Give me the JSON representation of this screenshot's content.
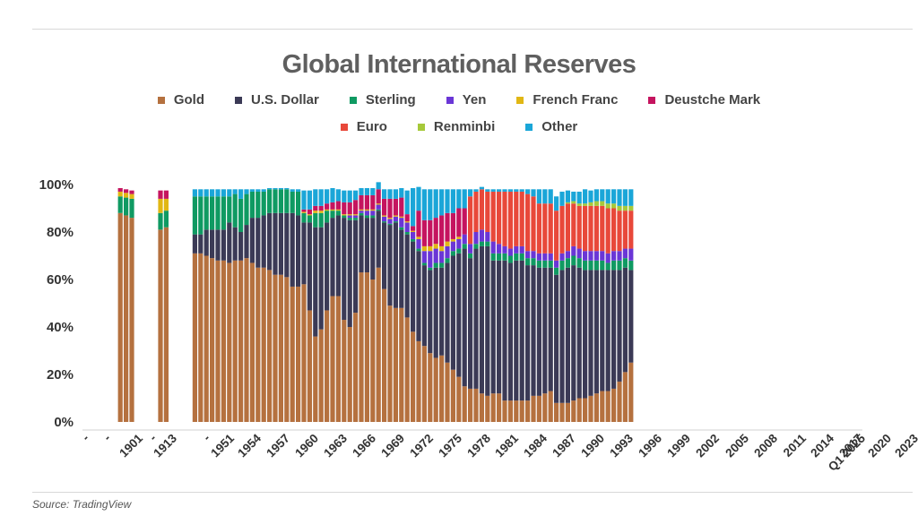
{
  "source": "Source: TradingView",
  "colors": {
    "Gold": "#b5713f",
    "U.S. Dollar": "#3b3a56",
    "Sterling": "#0f9a62",
    "Yen": "#6a36d6",
    "French Franc": "#e1b714",
    "Deustche Mark": "#c5145f",
    "Euro": "#e8483a",
    "Renminbi": "#a6c93a",
    "Other": "#1aa6d8"
  },
  "chart_data": {
    "type": "bar",
    "stacked": true,
    "title": "Global International Reserves",
    "xlabel": "",
    "ylabel": "",
    "ylim": [
      0,
      100
    ],
    "yticks": [
      "0%",
      "20%",
      "40%",
      "60%",
      "80%",
      "100%"
    ],
    "grid": false,
    "legend_position": "top",
    "series_names": [
      "Gold",
      "U.S. Dollar",
      "Sterling",
      "Yen",
      "French Franc",
      "Deustche Mark",
      "Euro",
      "Renminbi",
      "Other"
    ],
    "x_tick_labels": [
      "-",
      "-",
      "1901",
      "-",
      "1913",
      "-",
      "1951",
      "1954",
      "1957",
      "1960",
      "1963",
      "1966",
      "1969",
      "1972",
      "1975",
      "1978",
      "1981",
      "1984",
      "1987",
      "1990",
      "1993",
      "1996",
      "1999",
      "2002",
      "2005",
      "2008",
      "2011",
      "2014",
      "2017",
      "2020",
      "2023",
      "Q1 2025"
    ],
    "bars": [
      {
        "Gold": 88,
        "Sterling": 7,
        "French Franc": 2,
        "Deustche Mark": 1.5
      },
      {
        "Gold": 87,
        "Sterling": 7.5,
        "French Franc": 2,
        "Deustche Mark": 1.5
      },
      {
        "Gold": 86,
        "Sterling": 8,
        "French Franc": 2,
        "Deustche Mark": 1.5
      },
      null,
      null,
      null,
      null,
      {
        "Gold": 81,
        "Sterling": 7,
        "French Franc": 6,
        "Deustche Mark": 3.5
      },
      {
        "Gold": 82,
        "Sterling": 7,
        "French Franc": 5,
        "Deustche Mark": 3.5
      },
      null,
      null,
      null,
      null,
      {
        "Gold": 71,
        "U.S. Dollar": 8,
        "Sterling": 16,
        "Other": 3
      },
      {
        "Gold": 71,
        "U.S. Dollar": 8,
        "Sterling": 16,
        "Other": 3
      },
      {
        "Gold": 70,
        "U.S. Dollar": 11,
        "Sterling": 14,
        "Other": 3
      },
      {
        "Gold": 69,
        "U.S. Dollar": 12,
        "Sterling": 14,
        "Other": 3
      },
      {
        "Gold": 68,
        "U.S. Dollar": 13,
        "Sterling": 14,
        "Other": 3
      },
      {
        "Gold": 68,
        "U.S. Dollar": 13,
        "Sterling": 14,
        "Other": 3
      },
      {
        "Gold": 67,
        "U.S. Dollar": 17,
        "Sterling": 11,
        "Other": 3
      },
      {
        "Gold": 68,
        "U.S. Dollar": 14,
        "Sterling": 14,
        "Other": 2
      },
      {
        "Gold": 68,
        "U.S. Dollar": 12,
        "Sterling": 14,
        "Other": 4
      },
      {
        "Gold": 69,
        "U.S. Dollar": 14,
        "Sterling": 13,
        "Other": 2
      },
      {
        "Gold": 67,
        "U.S. Dollar": 19,
        "Sterling": 11,
        "Other": 1
      },
      {
        "Gold": 65,
        "U.S. Dollar": 21,
        "Sterling": 11,
        "Other": 1
      },
      {
        "Gold": 65,
        "U.S. Dollar": 22,
        "Sterling": 10,
        "Other": 1
      },
      {
        "Gold": 64,
        "U.S. Dollar": 24,
        "Sterling": 10,
        "Other": 0.5
      },
      {
        "Gold": 62,
        "U.S. Dollar": 26,
        "Sterling": 10,
        "Other": 0.5
      },
      {
        "Gold": 62,
        "U.S. Dollar": 26,
        "Sterling": 10,
        "Other": 0.5
      },
      {
        "Gold": 61,
        "U.S. Dollar": 27,
        "Sterling": 10,
        "Other": 0.5
      },
      {
        "Gold": 57,
        "U.S. Dollar": 31,
        "Sterling": 9,
        "Other": 1
      },
      {
        "Gold": 57,
        "U.S. Dollar": 30,
        "Sterling": 10,
        "Other": 1
      },
      {
        "Gold": 58,
        "U.S. Dollar": 26,
        "Sterling": 4,
        "French Franc": 0.5,
        "Deustche Mark": 1,
        "Other": 8
      },
      {
        "Gold": 47,
        "U.S. Dollar": 37,
        "Sterling": 3,
        "French Franc": 0.5,
        "Deustche Mark": 2,
        "Other": 8
      },
      {
        "Gold": 36,
        "U.S. Dollar": 46,
        "Sterling": 6,
        "French Franc": 1,
        "Deustche Mark": 2,
        "Other": 7
      },
      {
        "Gold": 39,
        "U.S. Dollar": 43,
        "Sterling": 6,
        "French Franc": 1,
        "Deustche Mark": 2,
        "Other": 7
      },
      {
        "Gold": 47,
        "U.S. Dollar": 37,
        "Sterling": 5,
        "French Franc": 0.5,
        "Deustche Mark": 2.5,
        "Other": 6
      },
      {
        "Gold": 53,
        "U.S. Dollar": 33,
        "Sterling": 3,
        "French Franc": 0.5,
        "Deustche Mark": 3,
        "Other": 6
      },
      {
        "Gold": 53,
        "U.S. Dollar": 34,
        "Sterling": 2,
        "French Franc": 0.5,
        "Deustche Mark": 3.5,
        "Other": 5
      },
      {
        "Gold": 43,
        "U.S. Dollar": 43,
        "Sterling": 1,
        "French Franc": 0.5,
        "Deustche Mark": 5,
        "Other": 5
      },
      {
        "Gold": 40,
        "U.S. Dollar": 45,
        "Sterling": 1,
        "Yen": 1,
        "French Franc": 0.5,
        "Deustche Mark": 5,
        "Other": 5
      },
      {
        "Gold": 46,
        "U.S. Dollar": 39,
        "Sterling": 1,
        "Yen": 1,
        "French Franc": 0.5,
        "Deustche Mark": 6,
        "Other": 4
      },
      {
        "Gold": 63,
        "U.S. Dollar": 24,
        "Sterling": 1,
        "Yen": 1,
        "French Franc": 0.5,
        "Deustche Mark": 6,
        "Other": 3
      },
      {
        "Gold": 63,
        "U.S. Dollar": 23,
        "Sterling": 1,
        "Yen": 2,
        "French Franc": 0.5,
        "Deustche Mark": 6,
        "Other": 3
      },
      {
        "Gold": 60,
        "U.S. Dollar": 26,
        "Sterling": 1,
        "Yen": 2,
        "French Franc": 0.5,
        "Deustche Mark": 6,
        "Other": 3
      },
      {
        "Gold": 65,
        "U.S. Dollar": 24,
        "Sterling": 0.5,
        "Yen": 2,
        "French Franc": 0.5,
        "Deustche Mark": 6,
        "Other": 3
      },
      {
        "Gold": 56,
        "U.S. Dollar": 28,
        "Sterling": 0.5,
        "Yen": 2,
        "French Franc": 0.5,
        "Deustche Mark": 7,
        "Other": 4
      },
      {
        "Gold": 49,
        "U.S. Dollar": 34,
        "Sterling": 0.5,
        "Yen": 2,
        "French Franc": 0.5,
        "Deustche Mark": 8,
        "Other": 4
      },
      {
        "Gold": 48,
        "U.S. Dollar": 36,
        "Sterling": 0.5,
        "Yen": 2,
        "French Franc": 0.5,
        "Deustche Mark": 7,
        "Other": 4
      },
      {
        "Gold": 48,
        "U.S. Dollar": 33,
        "Sterling": 1,
        "Yen": 4,
        "French Franc": 0.5,
        "Deustche Mark": 8,
        "Other": 4
      },
      {
        "Gold": 44,
        "U.S. Dollar": 35,
        "Sterling": 1,
        "Yen": 4,
        "French Franc": 0.5,
        "Deustche Mark": 3,
        "Other": 10
      },
      {
        "Gold": 38,
        "U.S. Dollar": 38,
        "Sterling": 1,
        "Yen": 3,
        "French Franc": 0.5,
        "Deustche Mark": 2,
        "Other": 16
      },
      {
        "Gold": 34,
        "U.S. Dollar": 38,
        "Sterling": 1,
        "Yen": 4,
        "French Franc": 1,
        "Deustche Mark": 11,
        "Other": 10
      },
      {
        "Gold": 32,
        "U.S. Dollar": 34,
        "Sterling": 1,
        "Yen": 5,
        "French Franc": 2,
        "Deustche Mark": 11,
        "Other": 13
      },
      {
        "Gold": 29,
        "U.S. Dollar": 35,
        "Sterling": 1,
        "Yen": 7,
        "French Franc": 2,
        "Deustche Mark": 11,
        "Other": 13
      },
      {
        "Gold": 27,
        "U.S. Dollar": 38,
        "Sterling": 2,
        "Yen": 6,
        "French Franc": 2,
        "Deustche Mark": 11,
        "Other": 12
      },
      {
        "Gold": 28,
        "U.S. Dollar": 37,
        "Sterling": 2,
        "Yen": 5,
        "French Franc": 2,
        "Deustche Mark": 13,
        "Other": 11
      },
      {
        "Gold": 25,
        "U.S. Dollar": 42,
        "Sterling": 2,
        "Yen": 5,
        "French Franc": 2,
        "Deustche Mark": 12,
        "Other": 10
      },
      {
        "Gold": 22,
        "U.S. Dollar": 48,
        "Sterling": 2,
        "Yen": 4,
        "French Franc": 1,
        "Deustche Mark": 11,
        "Other": 10
      },
      {
        "Gold": 19,
        "U.S. Dollar": 52,
        "Sterling": 2,
        "Yen": 4,
        "French Franc": 1,
        "Deustche Mark": 12,
        "Other": 8
      },
      {
        "Gold": 15,
        "U.S. Dollar": 58,
        "Sterling": 2,
        "Yen": 4,
        "Deustche Mark": 11,
        "Other": 8
      },
      {
        "Gold": 14,
        "U.S. Dollar": 55,
        "Sterling": 2,
        "Yen": 4,
        "Euro": 20,
        "Other": 3
      },
      {
        "Gold": 14,
        "U.S. Dollar": 59,
        "Sterling": 2,
        "Yen": 5,
        "Euro": 17,
        "Other": 1
      },
      {
        "Gold": 12,
        "U.S. Dollar": 62,
        "Sterling": 2,
        "Yen": 5,
        "Euro": 17,
        "Other": 1
      },
      {
        "Gold": 11,
        "U.S. Dollar": 63,
        "Sterling": 2,
        "Yen": 4,
        "Euro": 17,
        "Other": 1
      },
      {
        "Gold": 12,
        "U.S. Dollar": 56,
        "Sterling": 3,
        "Yen": 5,
        "Euro": 21,
        "Other": 1
      },
      {
        "Gold": 12,
        "U.S. Dollar": 56,
        "Sterling": 3,
        "Yen": 4,
        "Euro": 22,
        "Other": 1
      },
      {
        "Gold": 9,
        "U.S. Dollar": 59,
        "Sterling": 3,
        "Yen": 3,
        "Euro": 23,
        "Other": 1
      },
      {
        "Gold": 9,
        "U.S. Dollar": 58,
        "Sterling": 3,
        "Yen": 3,
        "Euro": 24,
        "Other": 1
      },
      {
        "Gold": 9,
        "U.S. Dollar": 59,
        "Sterling": 3,
        "Yen": 3,
        "Euro": 23,
        "Other": 1
      },
      {
        "Gold": 9,
        "U.S. Dollar": 59,
        "Sterling": 3,
        "Yen": 3,
        "Euro": 23,
        "Other": 1
      },
      {
        "Gold": 9,
        "U.S. Dollar": 57,
        "Sterling": 3,
        "Yen": 3,
        "Euro": 24,
        "Other": 2
      },
      {
        "Gold": 11,
        "U.S. Dollar": 55,
        "Sterling": 3,
        "Yen": 3,
        "Euro": 23,
        "Other": 3
      },
      {
        "Gold": 11,
        "U.S. Dollar": 54,
        "Sterling": 3,
        "Yen": 3,
        "Euro": 21,
        "Other": 6
      },
      {
        "Gold": 12,
        "U.S. Dollar": 53,
        "Sterling": 3,
        "Yen": 3,
        "Euro": 21,
        "Other": 6
      },
      {
        "Gold": 13,
        "U.S. Dollar": 52,
        "Sterling": 3,
        "Yen": 3,
        "Euro": 21,
        "Other": 6
      },
      {
        "Gold": 8,
        "U.S. Dollar": 54,
        "Sterling": 3,
        "Yen": 3,
        "Euro": 21,
        "Other": 6
      },
      {
        "Gold": 8,
        "U.S. Dollar": 56,
        "Sterling": 4,
        "Yen": 3,
        "Euro": 20,
        "Other": 6
      },
      {
        "Gold": 8,
        "U.S. Dollar": 57,
        "Sterling": 4,
        "Yen": 3,
        "Euro": 20,
        "Renminbi": 0.5,
        "Other": 5
      },
      {
        "Gold": 9,
        "U.S. Dollar": 57,
        "Sterling": 4,
        "Yen": 4,
        "Euro": 18,
        "Renminbi": 1,
        "Other": 4
      },
      {
        "Gold": 10,
        "U.S. Dollar": 55,
        "Sterling": 4,
        "Yen": 4,
        "Euro": 18,
        "Renminbi": 1,
        "Other": 5
      },
      {
        "Gold": 10,
        "U.S. Dollar": 54,
        "Sterling": 4,
        "Yen": 4,
        "Euro": 19,
        "Renminbi": 1,
        "Other": 6
      },
      {
        "Gold": 11,
        "U.S. Dollar": 53,
        "Sterling": 4,
        "Yen": 4,
        "Euro": 19,
        "Renminbi": 1.5,
        "Other": 5
      },
      {
        "Gold": 12,
        "U.S. Dollar": 52,
        "Sterling": 4,
        "Yen": 4,
        "Euro": 19,
        "Renminbi": 2,
        "Other": 5
      },
      {
        "Gold": 13,
        "U.S. Dollar": 51,
        "Sterling": 4,
        "Yen": 4,
        "Euro": 19,
        "Renminbi": 2,
        "Other": 5
      },
      {
        "Gold": 13,
        "U.S. Dollar": 51,
        "Sterling": 3,
        "Yen": 4,
        "Euro": 19,
        "Renminbi": 2,
        "Other": 6
      },
      {
        "Gold": 14,
        "U.S. Dollar": 50,
        "Sterling": 4,
        "Yen": 4,
        "Euro": 18,
        "Renminbi": 2,
        "Other": 6
      },
      {
        "Gold": 17,
        "U.S. Dollar": 47,
        "Sterling": 4,
        "Yen": 4,
        "Euro": 17,
        "Renminbi": 2,
        "Other": 7
      },
      {
        "Gold": 21,
        "U.S. Dollar": 44,
        "Sterling": 4,
        "Yen": 4,
        "Euro": 16,
        "Renminbi": 2,
        "Other": 7
      },
      {
        "Gold": 25,
        "U.S. Dollar": 39,
        "Sterling": 4,
        "Yen": 5,
        "Euro": 16,
        "Renminbi": 2,
        "Other": 7
      }
    ]
  }
}
